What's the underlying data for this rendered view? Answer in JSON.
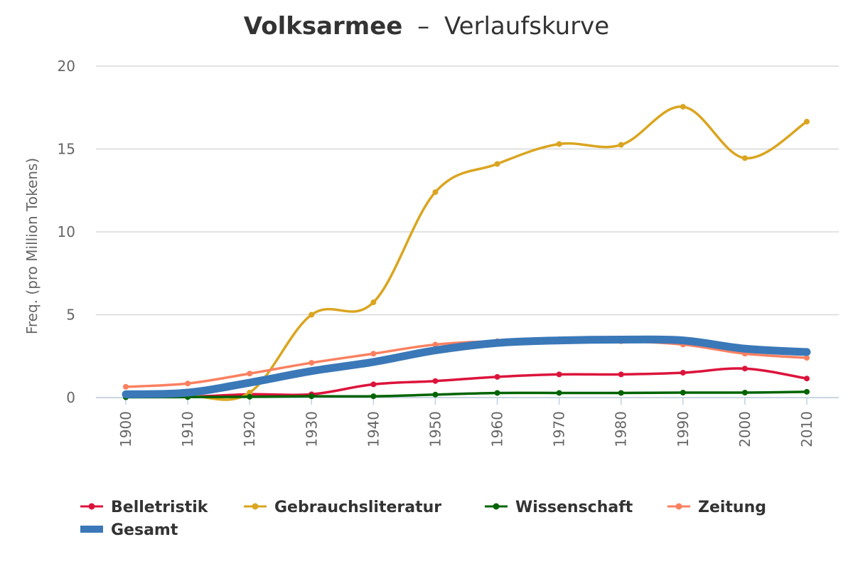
{
  "chart_data": {
    "type": "line",
    "title_main": "Volksarmee",
    "title_sep": "–",
    "title_sub": "Verlaufskurve",
    "xlabel": "",
    "ylabel": "Freq. (pro Million Tokens)",
    "ylim": [
      0,
      20
    ],
    "yticks": [
      "0",
      "5",
      "10",
      "15",
      "20"
    ],
    "ytick_values": [
      0,
      5,
      10,
      15,
      20
    ],
    "categories": [
      "1900",
      "1910",
      "1920",
      "1930",
      "1940",
      "1950",
      "1960",
      "1970",
      "1980",
      "1990",
      "2000",
      "2010"
    ],
    "grid": true,
    "legend_position": "bottom-left",
    "series": [
      {
        "name": "Belletristik",
        "color": "#dc143c",
        "values": [
          0.05,
          0.05,
          0.2,
          0.2,
          0.8,
          1.0,
          1.25,
          1.4,
          1.4,
          1.5,
          1.75,
          1.15
        ]
      },
      {
        "name": "Gebrauchsliteratur",
        "color": "#daa520",
        "values": [
          0.05,
          0.1,
          0.3,
          5.0,
          5.75,
          12.4,
          14.1,
          15.3,
          15.25,
          17.55,
          14.45,
          16.65
        ]
      },
      {
        "name": "Wissenschaft",
        "color": "#006400",
        "values": [
          0.02,
          0.03,
          0.05,
          0.08,
          0.08,
          0.18,
          0.28,
          0.28,
          0.28,
          0.3,
          0.3,
          0.35
        ]
      },
      {
        "name": "Zeitung",
        "color": "#fa8060",
        "values": [
          0.65,
          0.85,
          1.45,
          2.1,
          2.65,
          3.2,
          3.4,
          3.4,
          3.4,
          3.2,
          2.65,
          2.4
        ]
      },
      {
        "name": "Gesamt",
        "color": "#3a78b8",
        "values": [
          0.2,
          0.3,
          0.9,
          1.6,
          2.15,
          2.85,
          3.3,
          3.45,
          3.5,
          3.45,
          2.95,
          2.75
        ],
        "bold": true
      }
    ]
  }
}
